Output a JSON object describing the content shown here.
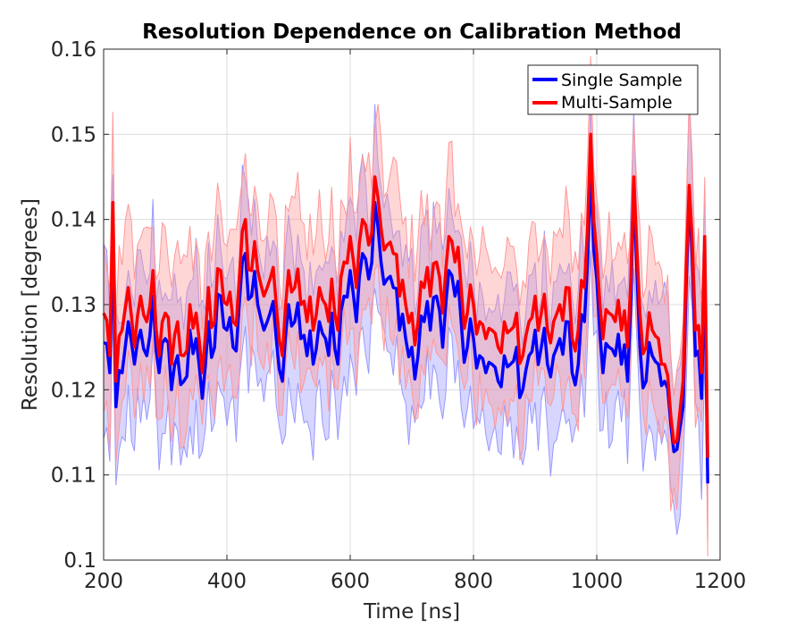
{
  "chart_data": {
    "type": "line",
    "title": "Resolution Dependence on Calibration Method",
    "xlabel": "Time [ns]",
    "ylabel": "Resolution [degrees]",
    "xlim": [
      200,
      1200
    ],
    "ylim": [
      0.1,
      0.16
    ],
    "xticks": [
      200,
      400,
      600,
      800,
      1000,
      1200
    ],
    "yticks": [
      0.1,
      0.11,
      0.12,
      0.13,
      0.14,
      0.15,
      0.16
    ],
    "xtick_labels": [
      "200",
      "400",
      "600",
      "800",
      "1000",
      "1200"
    ],
    "ytick_labels": [
      "0.1",
      "0.11",
      "0.12",
      "0.13",
      "0.14",
      "0.15",
      "0.16"
    ],
    "grid": true,
    "legend_position": "top-right",
    "x_step": 5,
    "series": [
      {
        "name": "Single Sample",
        "color": "#0000ff",
        "band_color": "#9999ff",
        "anchors": [
          [
            200,
            0.1255
          ],
          [
            210,
            0.122
          ],
          [
            215,
            0.138
          ],
          [
            220,
            0.118
          ],
          [
            230,
            0.122
          ],
          [
            240,
            0.128
          ],
          [
            250,
            0.123
          ],
          [
            260,
            0.127
          ],
          [
            270,
            0.124
          ],
          [
            280,
            0.131
          ],
          [
            290,
            0.122
          ],
          [
            300,
            0.126
          ],
          [
            310,
            0.12
          ],
          [
            320,
            0.124
          ],
          [
            330,
            0.121
          ],
          [
            340,
            0.127
          ],
          [
            350,
            0.126
          ],
          [
            360,
            0.119
          ],
          [
            370,
            0.128
          ],
          [
            380,
            0.125
          ],
          [
            390,
            0.131
          ],
          [
            400,
            0.127
          ],
          [
            410,
            0.125
          ],
          [
            420,
            0.13
          ],
          [
            430,
            0.136
          ],
          [
            440,
            0.131
          ],
          [
            450,
            0.13
          ],
          [
            460,
            0.127
          ],
          [
            470,
            0.129
          ],
          [
            480,
            0.126
          ],
          [
            490,
            0.121
          ],
          [
            500,
            0.13
          ],
          [
            510,
            0.128
          ],
          [
            520,
            0.126
          ],
          [
            530,
            0.124
          ],
          [
            540,
            0.123
          ],
          [
            550,
            0.128
          ],
          [
            560,
            0.126
          ],
          [
            570,
            0.129
          ],
          [
            580,
            0.123
          ],
          [
            590,
            0.131
          ],
          [
            600,
            0.134
          ],
          [
            610,
            0.128
          ],
          [
            620,
            0.136
          ],
          [
            630,
            0.133
          ],
          [
            640,
            0.142
          ],
          [
            650,
            0.135
          ],
          [
            660,
            0.133
          ],
          [
            670,
            0.132
          ],
          [
            680,
            0.127
          ],
          [
            690,
            0.126
          ],
          [
            700,
            0.125
          ],
          [
            710,
            0.124
          ],
          [
            720,
            0.128
          ],
          [
            730,
            0.127
          ],
          [
            740,
            0.131
          ],
          [
            750,
            0.125
          ],
          [
            760,
            0.134
          ],
          [
            770,
            0.131
          ],
          [
            780,
            0.128
          ],
          [
            790,
            0.125
          ],
          [
            800,
            0.126
          ],
          [
            810,
            0.124
          ],
          [
            820,
            0.122
          ],
          [
            830,
            0.123
          ],
          [
            840,
            0.121
          ],
          [
            850,
            0.124
          ],
          [
            860,
            0.123
          ],
          [
            870,
            0.125
          ],
          [
            880,
            0.12
          ],
          [
            890,
            0.124
          ],
          [
            900,
            0.127
          ],
          [
            910,
            0.125
          ],
          [
            920,
            0.123
          ],
          [
            930,
            0.124
          ],
          [
            940,
            0.126
          ],
          [
            950,
            0.128
          ],
          [
            960,
            0.122
          ],
          [
            970,
            0.123
          ],
          [
            980,
            0.128
          ],
          [
            990,
            0.146
          ],
          [
            1000,
            0.133
          ],
          [
            1010,
            0.122
          ],
          [
            1020,
            0.125
          ],
          [
            1030,
            0.124
          ],
          [
            1040,
            0.123
          ],
          [
            1050,
            0.121
          ],
          [
            1060,
            0.144
          ],
          [
            1070,
            0.125
          ],
          [
            1080,
            0.121
          ],
          [
            1090,
            0.124
          ],
          [
            1100,
            0.123
          ],
          [
            1110,
            0.121
          ],
          [
            1120,
            0.116
          ],
          [
            1130,
            0.113
          ],
          [
            1140,
            0.118
          ],
          [
            1150,
            0.143
          ],
          [
            1160,
            0.124
          ],
          [
            1170,
            0.119
          ],
          [
            1175,
            0.135
          ],
          [
            1180,
            0.109
          ]
        ]
      },
      {
        "name": "Multi-Sample",
        "color": "#ff0000",
        "band_color": "#ff9999",
        "anchors": [
          [
            200,
            0.129
          ],
          [
            210,
            0.124
          ],
          [
            215,
            0.142
          ],
          [
            220,
            0.121
          ],
          [
            230,
            0.127
          ],
          [
            240,
            0.132
          ],
          [
            250,
            0.125
          ],
          [
            260,
            0.131
          ],
          [
            270,
            0.128
          ],
          [
            280,
            0.134
          ],
          [
            290,
            0.124
          ],
          [
            300,
            0.129
          ],
          [
            310,
            0.123
          ],
          [
            320,
            0.128
          ],
          [
            330,
            0.124
          ],
          [
            340,
            0.13
          ],
          [
            350,
            0.129
          ],
          [
            360,
            0.122
          ],
          [
            370,
            0.132
          ],
          [
            380,
            0.128
          ],
          [
            390,
            0.134
          ],
          [
            400,
            0.13
          ],
          [
            410,
            0.128
          ],
          [
            420,
            0.133
          ],
          [
            430,
            0.14
          ],
          [
            440,
            0.134
          ],
          [
            450,
            0.134
          ],
          [
            460,
            0.131
          ],
          [
            470,
            0.133
          ],
          [
            480,
            0.13
          ],
          [
            490,
            0.124
          ],
          [
            500,
            0.134
          ],
          [
            510,
            0.132
          ],
          [
            520,
            0.13
          ],
          [
            530,
            0.128
          ],
          [
            540,
            0.127
          ],
          [
            550,
            0.132
          ],
          [
            560,
            0.13
          ],
          [
            570,
            0.133
          ],
          [
            580,
            0.127
          ],
          [
            590,
            0.135
          ],
          [
            600,
            0.138
          ],
          [
            610,
            0.132
          ],
          [
            620,
            0.14
          ],
          [
            630,
            0.137
          ],
          [
            640,
            0.145
          ],
          [
            650,
            0.139
          ],
          [
            660,
            0.137
          ],
          [
            670,
            0.136
          ],
          [
            680,
            0.131
          ],
          [
            690,
            0.13
          ],
          [
            700,
            0.129
          ],
          [
            710,
            0.128
          ],
          [
            720,
            0.132
          ],
          [
            730,
            0.131
          ],
          [
            740,
            0.135
          ],
          [
            750,
            0.129
          ],
          [
            760,
            0.138
          ],
          [
            770,
            0.135
          ],
          [
            780,
            0.132
          ],
          [
            790,
            0.129
          ],
          [
            800,
            0.13
          ],
          [
            810,
            0.128
          ],
          [
            820,
            0.126
          ],
          [
            830,
            0.127
          ],
          [
            840,
            0.125
          ],
          [
            850,
            0.128
          ],
          [
            860,
            0.127
          ],
          [
            870,
            0.129
          ],
          [
            880,
            0.124
          ],
          [
            890,
            0.128
          ],
          [
            900,
            0.131
          ],
          [
            910,
            0.129
          ],
          [
            920,
            0.127
          ],
          [
            930,
            0.128
          ],
          [
            940,
            0.13
          ],
          [
            950,
            0.132
          ],
          [
            960,
            0.126
          ],
          [
            970,
            0.127
          ],
          [
            980,
            0.132
          ],
          [
            990,
            0.15
          ],
          [
            1000,
            0.136
          ],
          [
            1010,
            0.126
          ],
          [
            1020,
            0.129
          ],
          [
            1030,
            0.128
          ],
          [
            1040,
            0.127
          ],
          [
            1050,
            0.125
          ],
          [
            1060,
            0.145
          ],
          [
            1070,
            0.129
          ],
          [
            1080,
            0.125
          ],
          [
            1090,
            0.127
          ],
          [
            1100,
            0.126
          ],
          [
            1110,
            0.123
          ],
          [
            1120,
            0.117
          ],
          [
            1130,
            0.114
          ],
          [
            1140,
            0.121
          ],
          [
            1150,
            0.144
          ],
          [
            1160,
            0.127
          ],
          [
            1170,
            0.122
          ],
          [
            1175,
            0.138
          ],
          [
            1180,
            0.112
          ]
        ]
      }
    ]
  }
}
